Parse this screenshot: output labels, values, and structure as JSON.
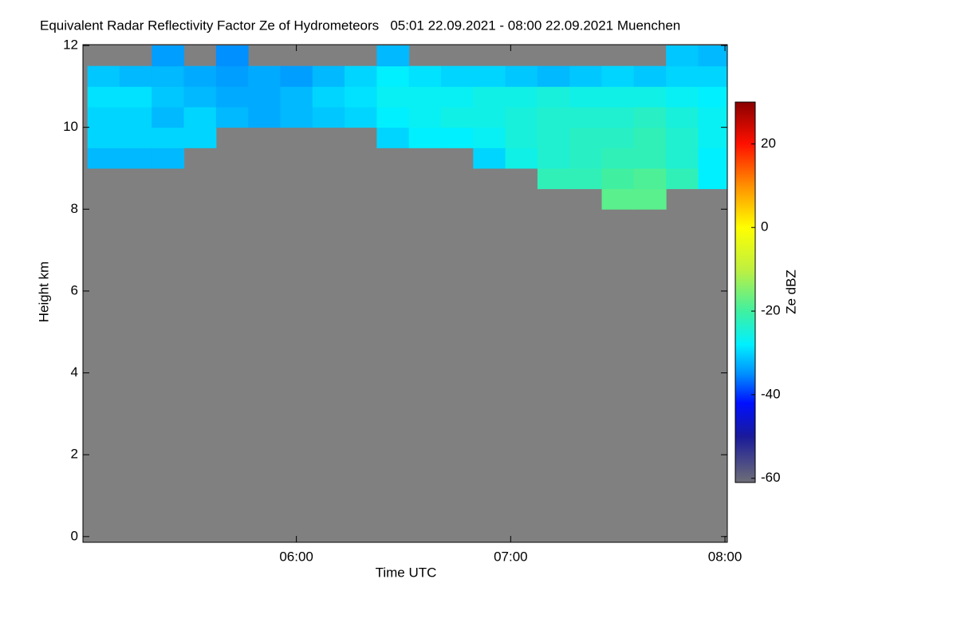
{
  "chart_data": {
    "type": "heatmap",
    "title": "Equivalent Radar Reflectivity Factor Ze of Hydrometeors   05:01 22.09.2021 - 08:00 22.09.2021 Muenchen",
    "xlabel": "Time UTC",
    "ylabel": "Height km",
    "colorbar_label": "Ze dBZ",
    "xlim": [
      5.004,
      8.011
    ],
    "xticks": [
      {
        "value": 6,
        "label": "06:00"
      },
      {
        "value": 7,
        "label": "07:00"
      },
      {
        "value": 8,
        "label": "08:00"
      }
    ],
    "ylim": [
      -0.14,
      12.02
    ],
    "yticks": [
      0,
      2,
      4,
      6,
      8,
      10,
      12
    ],
    "clim": [
      -61,
      30
    ],
    "cticks": [
      -60,
      -40,
      -20,
      0,
      20
    ],
    "background": "#808080",
    "colorscale": [
      [
        -61,
        "#6e6e78"
      ],
      [
        -50,
        "#1a1a9a"
      ],
      [
        -42,
        "#0010ff"
      ],
      [
        -35,
        "#0090ff"
      ],
      [
        -28,
        "#00f0ff"
      ],
      [
        -20,
        "#40f0a0"
      ],
      [
        -10,
        "#c0f040"
      ],
      [
        0,
        "#ffff00"
      ],
      [
        10,
        "#ff9000"
      ],
      [
        20,
        "#ff1000"
      ],
      [
        30,
        "#8a0000"
      ]
    ],
    "x": [
      5.1,
      5.25,
      5.4,
      5.55,
      5.7,
      5.85,
      6.0,
      6.15,
      6.3,
      6.45,
      6.6,
      6.75,
      6.9,
      7.05,
      7.2,
      7.35,
      7.5,
      7.65,
      7.8,
      7.95
    ],
    "y": [
      8.25,
      8.75,
      9.25,
      9.75,
      10.25,
      10.75,
      11.25,
      11.75
    ],
    "z": [
      [
        null,
        null,
        null,
        null,
        null,
        null,
        null,
        null,
        null,
        null,
        null,
        null,
        null,
        null,
        null,
        null,
        -18,
        -18,
        null,
        null
      ],
      [
        null,
        null,
        null,
        null,
        null,
        null,
        null,
        null,
        null,
        null,
        null,
        null,
        null,
        null,
        -22,
        -22,
        -20,
        -19,
        -22,
        -28
      ],
      [
        -32,
        -32,
        -32,
        null,
        null,
        null,
        null,
        null,
        null,
        null,
        null,
        null,
        -30,
        -26,
        -24,
        -23,
        -22,
        -22,
        -24,
        -28
      ],
      [
        -30,
        -30,
        -30,
        -30,
        null,
        null,
        null,
        null,
        null,
        -30,
        -28,
        -28,
        -27,
        -25,
        -24,
        -23,
        -23,
        -22,
        -24,
        -27
      ],
      [
        -30,
        -30,
        -32,
        -30,
        -32,
        -33,
        -32,
        -31,
        -30,
        -28,
        -27,
        -26,
        -26,
        -25,
        -24,
        -24,
        -24,
        -23,
        -25,
        -27
      ],
      [
        -29,
        -29,
        -31,
        -32,
        -33,
        -33,
        -32,
        -30,
        -29,
        -27,
        -27,
        -27,
        -26,
        -26,
        -25,
        -26,
        -26,
        -26,
        -27,
        -28
      ],
      [
        -31,
        -32,
        -32,
        -33,
        -34,
        -33,
        -34,
        -32,
        -30,
        -28,
        -29,
        -30,
        -30,
        -31,
        -32,
        -31,
        -30,
        -31,
        -30,
        -30
      ],
      [
        null,
        null,
        -34,
        null,
        -35,
        null,
        null,
        null,
        null,
        -32,
        null,
        null,
        null,
        null,
        null,
        null,
        null,
        null,
        -31,
        -32
      ]
    ]
  }
}
